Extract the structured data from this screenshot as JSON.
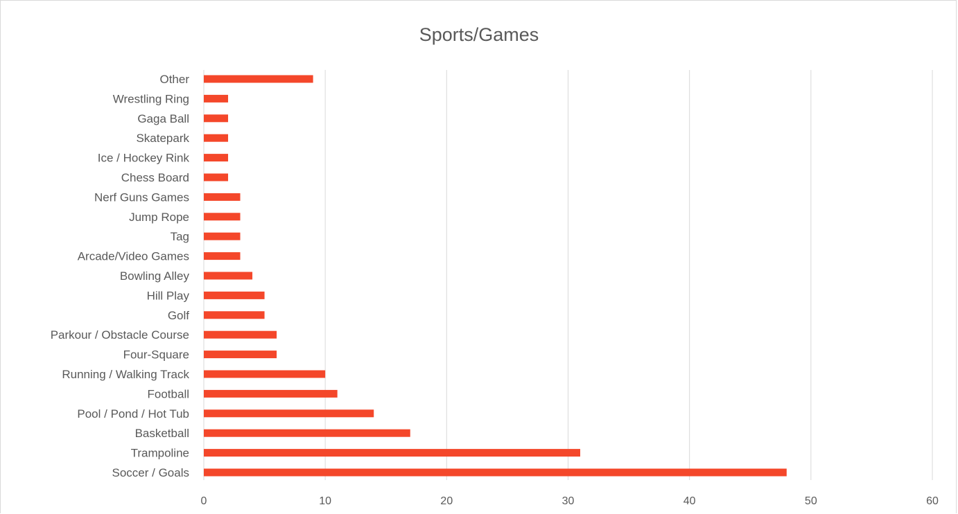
{
  "chart_data": {
    "type": "bar",
    "orientation": "horizontal",
    "title": "Sports/Games",
    "xlabel": "",
    "ylabel": "",
    "xlim": [
      0,
      60
    ],
    "x_ticks": [
      0,
      10,
      20,
      30,
      40,
      50,
      60
    ],
    "grid": "vertical gridlines",
    "legend": "none",
    "categories": [
      "Other",
      "Wrestling Ring",
      "Gaga Ball",
      "Skatepark",
      "Ice / Hockey Rink",
      "Chess Board",
      "Nerf Guns Games",
      "Jump Rope",
      "Tag",
      "Arcade/Video Games",
      "Bowling Alley",
      "Hill Play",
      "Golf",
      "Parkour / Obstacle Course",
      "Four-Square",
      "Running / Walking Track",
      "Football",
      "Pool / Pond /  Hot Tub",
      "Basketball",
      "Trampoline",
      "Soccer / Goals"
    ],
    "values": [
      9,
      2,
      2,
      2,
      2,
      2,
      3,
      3,
      3,
      3,
      4,
      5,
      5,
      6,
      6,
      10,
      11,
      14,
      17,
      31,
      48
    ],
    "colors": {
      "bar": "#f4472a",
      "grid": "#d9d9d9",
      "text": "#595959"
    }
  }
}
